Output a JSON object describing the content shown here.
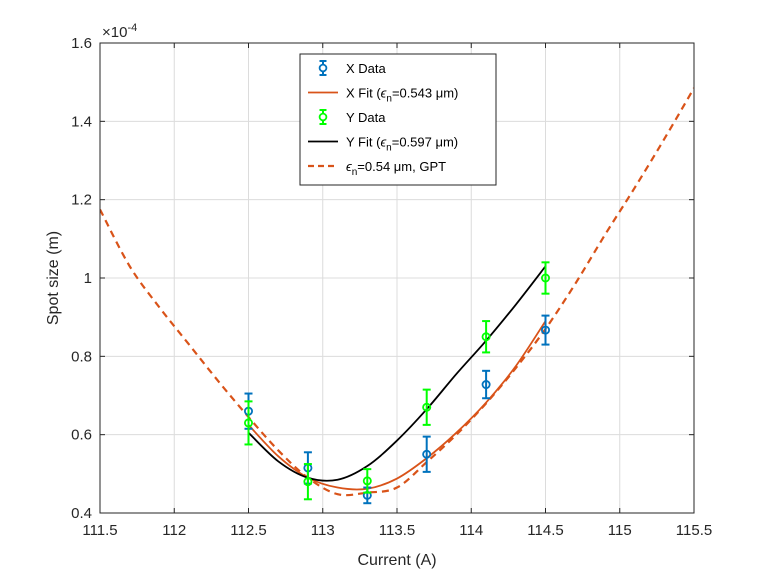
{
  "chart_data": {
    "type": "line",
    "title": "",
    "xlabel": "Current (A)",
    "ylabel": "Spot size (m)",
    "exponent_label": "×10",
    "exponent_power": "-4",
    "xlim": [
      111.5,
      115.5
    ],
    "ylim": [
      0.4,
      1.6
    ],
    "xticks": [
      111.5,
      112,
      112.5,
      113,
      113.5,
      114,
      114.5,
      115,
      115.5
    ],
    "xtick_labels": [
      "111.5",
      "112",
      "112.5",
      "113",
      "113.5",
      "114",
      "114.5",
      "115",
      "115.5"
    ],
    "yticks": [
      0.4,
      0.6,
      0.8,
      1.0,
      1.2,
      1.4,
      1.6
    ],
    "ytick_labels": [
      "0.4",
      "0.6",
      "0.8",
      "1",
      "1.2",
      "1.4",
      "1.6"
    ],
    "grid": true,
    "legend_position": "top-center",
    "colors": {
      "x_data": "#0072BD",
      "x_fit": "#D95319",
      "y_data": "#00FF00",
      "y_fit": "#000000",
      "gpt": "#D95319",
      "grid": "#dcdcdc",
      "axis": "#262626"
    },
    "series": [
      {
        "name": "X Data",
        "kind": "errorbar",
        "x": [
          112.5,
          112.9,
          113.3,
          113.7,
          114.1,
          114.5
        ],
        "y": [
          0.66,
          0.515,
          0.445,
          0.55,
          0.728,
          0.867
        ],
        "err": [
          0.045,
          0.04,
          0.02,
          0.045,
          0.035,
          0.037
        ]
      },
      {
        "name": "Y Data",
        "kind": "errorbar",
        "x": [
          112.5,
          112.9,
          113.3,
          113.7,
          114.1,
          114.5
        ],
        "y": [
          0.63,
          0.48,
          0.482,
          0.67,
          0.85,
          1.0
        ],
        "err": [
          0.055,
          0.045,
          0.03,
          0.045,
          0.04,
          0.04
        ]
      },
      {
        "name": "X Fit",
        "kind": "line",
        "x": [
          112.5,
          112.7,
          112.9,
          113.1,
          113.3,
          113.5,
          113.7,
          113.9,
          114.1,
          114.3,
          114.5
        ],
        "y": [
          0.625,
          0.545,
          0.49,
          0.465,
          0.462,
          0.488,
          0.54,
          0.605,
          0.682,
          0.775,
          0.89
        ]
      },
      {
        "name": "Y Fit",
        "kind": "line",
        "x": [
          112.5,
          112.7,
          112.9,
          113.1,
          113.3,
          113.5,
          113.7,
          113.9,
          114.1,
          114.3,
          114.5
        ],
        "y": [
          0.605,
          0.532,
          0.49,
          0.485,
          0.52,
          0.585,
          0.665,
          0.755,
          0.84,
          0.932,
          1.03
        ]
      },
      {
        "name": "GPT",
        "kind": "dashed",
        "x": [
          111.5,
          111.7,
          111.9,
          112.1,
          112.3,
          112.5,
          112.7,
          112.9,
          113.1,
          113.3,
          113.5,
          113.7,
          113.9,
          114.1,
          114.3,
          114.5,
          114.7,
          114.9,
          115.1,
          115.3,
          115.5
        ],
        "y": [
          1.175,
          1.03,
          0.925,
          0.83,
          0.735,
          0.645,
          0.56,
          0.49,
          0.448,
          0.452,
          0.465,
          0.53,
          0.6,
          0.68,
          0.77,
          0.87,
          0.985,
          1.11,
          1.23,
          1.355,
          1.485
        ]
      }
    ],
    "legend": [
      {
        "label": "X Data",
        "symbol": "errorbar",
        "color": "#0072BD"
      },
      {
        "label": "X Fit (ϵn=0.543 μm)",
        "label_prefix": "X Fit (",
        "sym": "ϵ",
        "sub": "n",
        "label_suffix": "=0.543 μm)",
        "symbol": "line",
        "color": "#D95319"
      },
      {
        "label": "Y Data",
        "symbol": "errorbar",
        "color": "#00FF00"
      },
      {
        "label": "Y Fit (ϵn=0.597 μm)",
        "label_prefix": "Y Fit (",
        "sym": "ϵ",
        "sub": "n",
        "label_suffix": "=0.597 μm)",
        "symbol": "line",
        "color": "#000000"
      },
      {
        "label": "ϵn=0.54 μm, GPT",
        "label_prefix": "",
        "sym": "ϵ",
        "sub": "n",
        "label_suffix": "=0.54 μm, GPT",
        "symbol": "dashed",
        "color": "#D95319"
      }
    ]
  }
}
